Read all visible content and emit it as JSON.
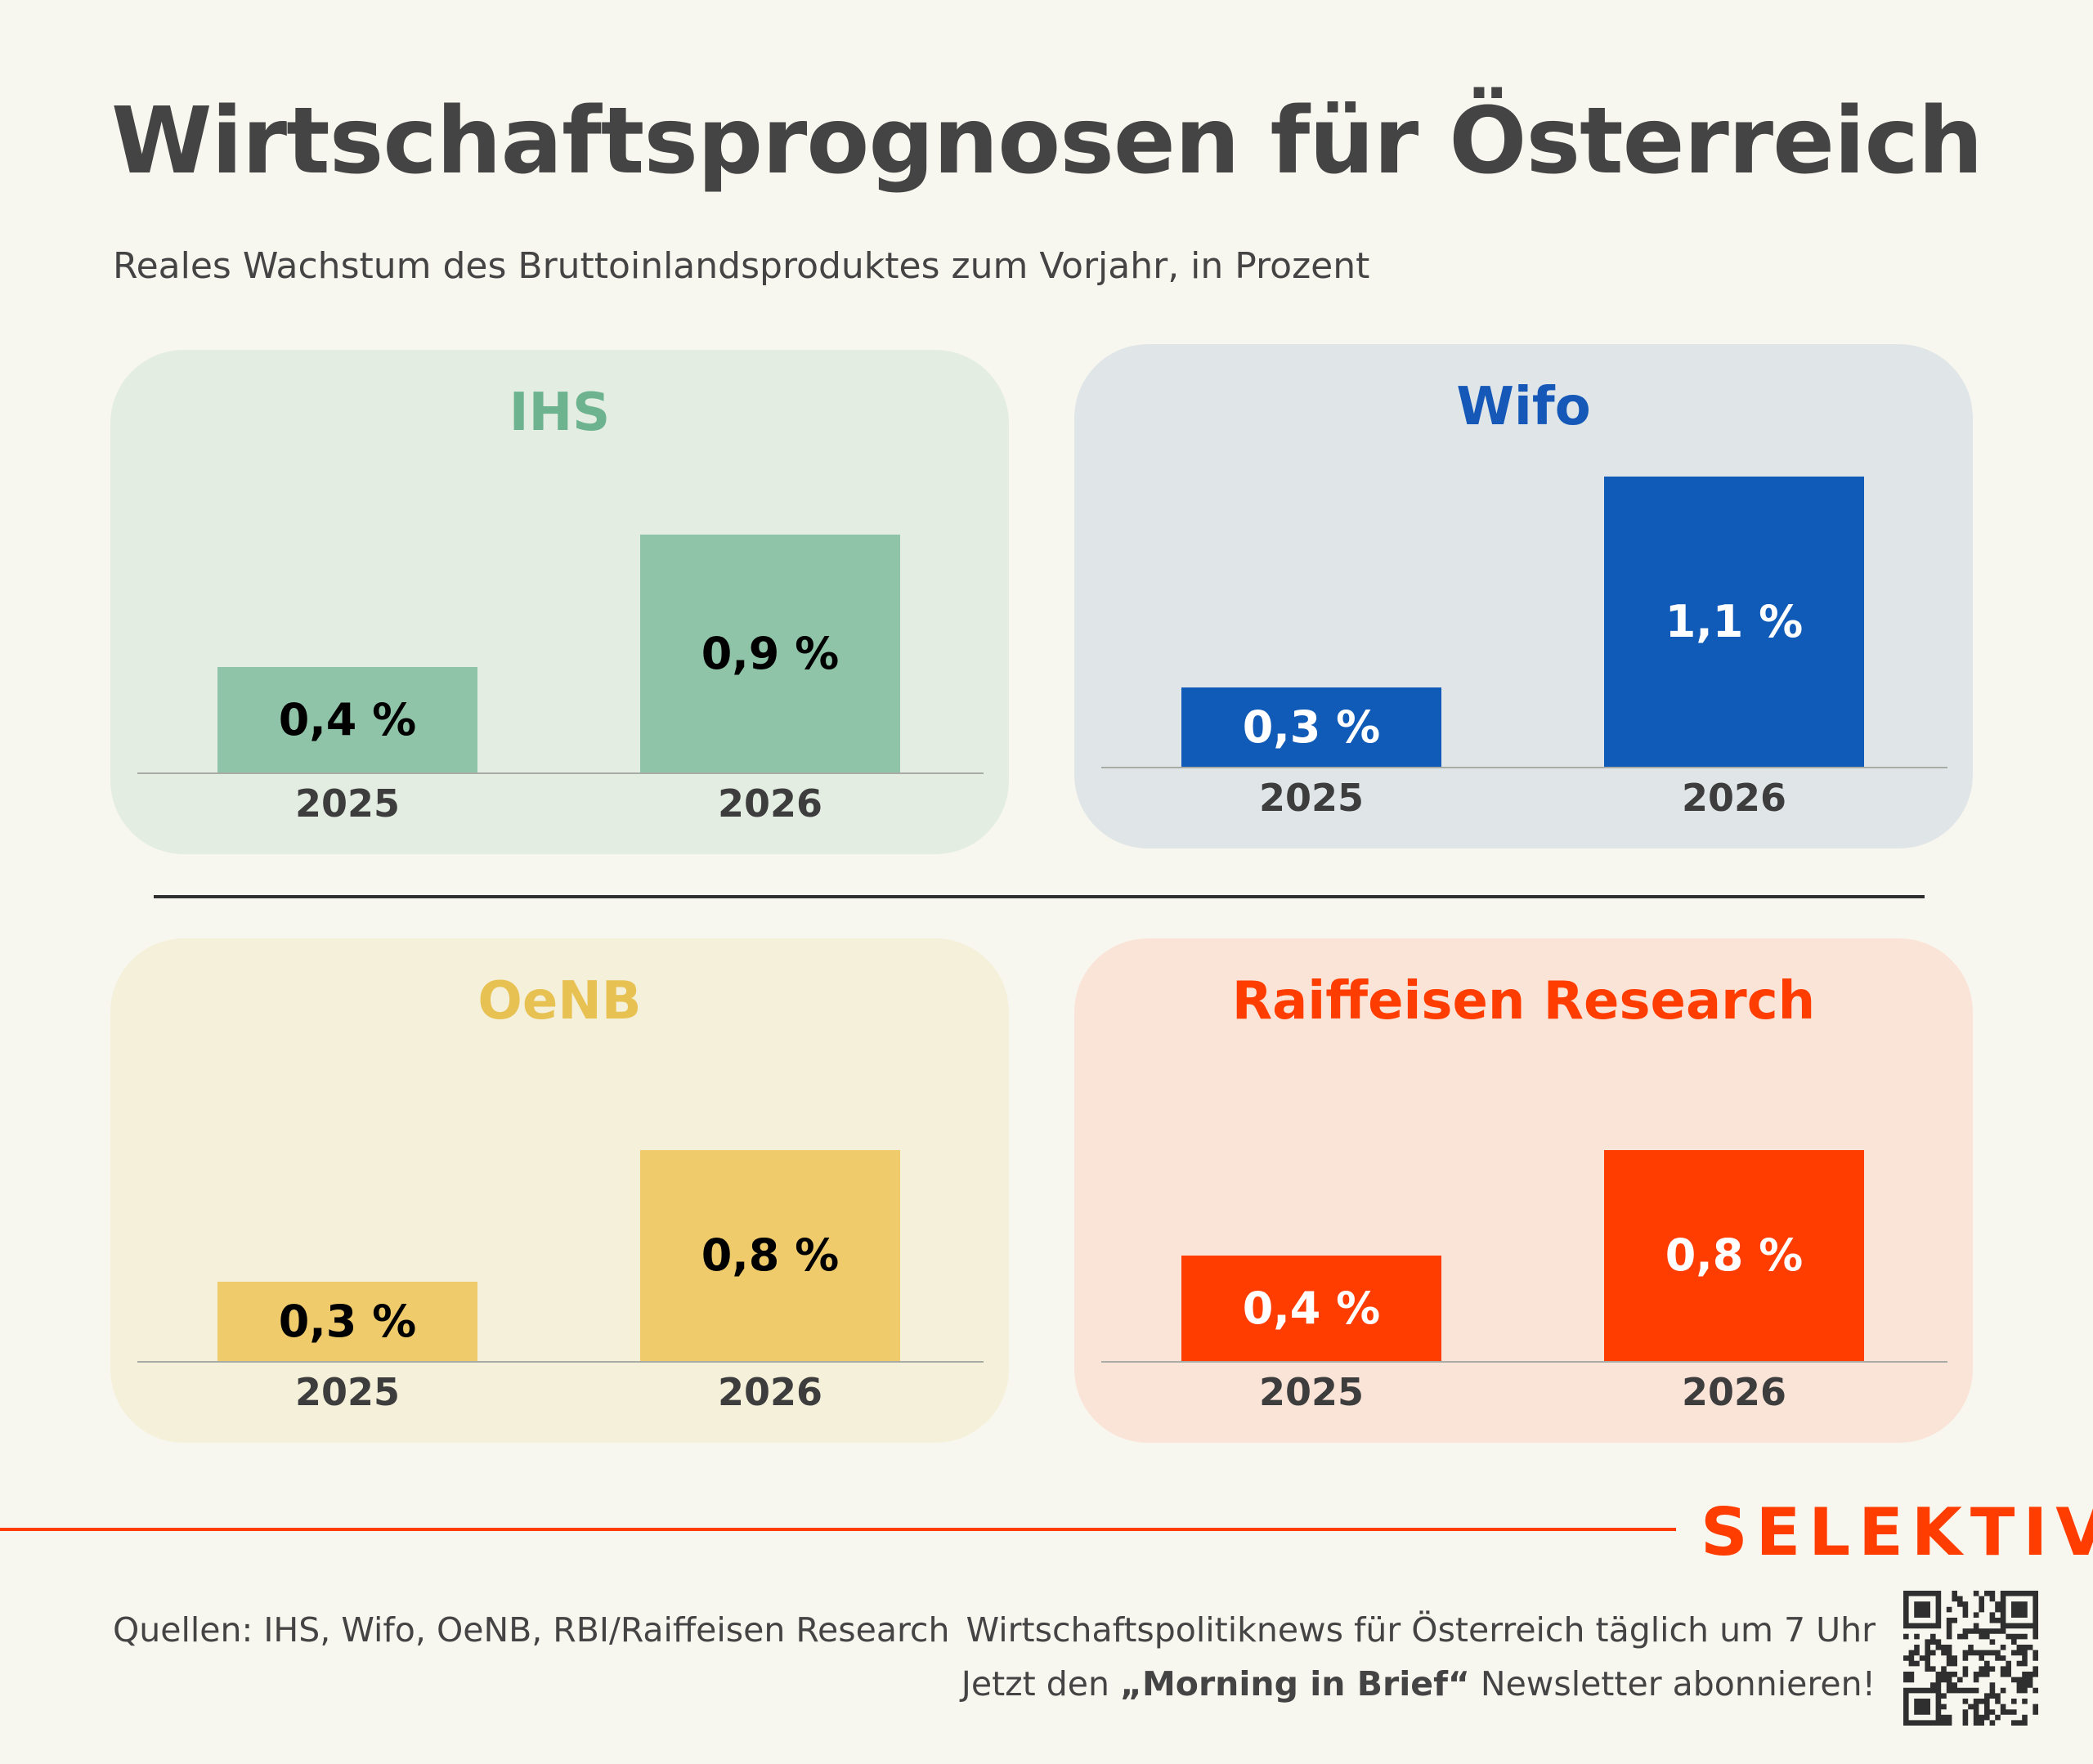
{
  "header": {
    "title": "Wirtschaftsprognosen für Österreich",
    "subtitle": "Reales Wachstum des Bruttoinlandsproduktes zum Vorjahr, in Prozent"
  },
  "chart_data": [
    {
      "type": "bar",
      "title": "IHS",
      "categories": [
        "2025",
        "2026"
      ],
      "values": [
        0.4,
        0.9
      ],
      "labels": [
        "0,4 %",
        "0,9 %"
      ],
      "unit": "%",
      "title_color": "#6db38f",
      "panel_color": "#e3ede1",
      "bar_color": "#8fc4a8",
      "label_color": "#000000"
    },
    {
      "type": "bar",
      "title": "Wifo",
      "categories": [
        "2025",
        "2026"
      ],
      "values": [
        0.3,
        1.1
      ],
      "labels": [
        "0,3 %",
        "1,1 %"
      ],
      "unit": "%",
      "title_color": "#1558b8",
      "panel_color": "#e0e6e8",
      "bar_color": "#115bb8",
      "label_color": "#ffffff"
    },
    {
      "type": "bar",
      "title": "OeNB",
      "categories": [
        "2025",
        "2026"
      ],
      "values": [
        0.3,
        0.8
      ],
      "labels": [
        "0,3 %",
        "0,8 %"
      ],
      "unit": "%",
      "title_color": "#e8c153",
      "panel_color": "#f4f0da",
      "bar_color": "#efcb6b",
      "label_color": "#000000"
    },
    {
      "type": "bar",
      "title": "Raiffeisen Research",
      "categories": [
        "2025",
        "2026"
      ],
      "values": [
        0.4,
        0.8
      ],
      "labels": [
        "0,4 %",
        "0,8 %"
      ],
      "unit": "%",
      "title_color": "#ff3d00",
      "panel_color": "#fae4d8",
      "bar_color": "#ff3d00",
      "label_color": "#ffffff"
    }
  ],
  "footer": {
    "logo": "SELEKTIV",
    "sources": "Quellen: IHS, Wifo, OeNB, RBI/Raiffeisen Research",
    "promo_line1": "Wirtschaftspolitiknews für Österreich täglich um 7 Uhr",
    "promo_line2_pre": "Jetzt den ",
    "promo_line2_bold": "„Morning in Brief“",
    "promo_line2_post": " Newsletter abonnieren!",
    "qr_icon": "qr-code-icon",
    "brand_color": "#ff3d00"
  }
}
